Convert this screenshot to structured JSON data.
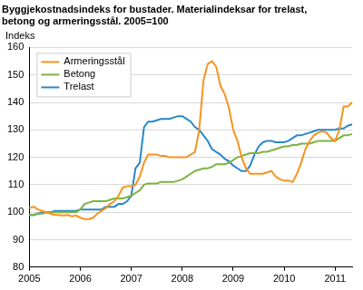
{
  "chart_data": {
    "type": "line",
    "title": "Byggjekostnadsindeks for bustader. Materialindeksar for trelast, betong og armeringsstål. 2005=100",
    "ylabel": "Indeks",
    "categories": [
      "2005",
      null,
      null,
      null,
      null,
      null,
      null,
      null,
      null,
      null,
      null,
      null,
      "2006",
      null,
      null,
      null,
      null,
      null,
      null,
      null,
      null,
      null,
      null,
      null,
      "2007",
      null,
      null,
      null,
      null,
      null,
      null,
      null,
      null,
      null,
      null,
      null,
      "2008",
      null,
      null,
      null,
      null,
      null,
      null,
      null,
      null,
      null,
      null,
      null,
      "2009",
      null,
      null,
      null,
      null,
      null,
      null,
      null,
      null,
      null,
      null,
      null,
      "2010",
      null,
      null,
      null,
      null,
      null,
      null,
      null,
      null,
      null,
      null,
      null,
      "2011",
      null,
      null,
      null,
      null
    ],
    "series": [
      {
        "name": "Armeringsstål",
        "color": "#f7931e",
        "values": [
          101.5,
          102,
          101,
          100.5,
          100,
          99.5,
          99,
          99,
          98.8,
          99,
          98.5,
          98.8,
          98,
          97.5,
          97.5,
          98,
          99.5,
          100.5,
          101.5,
          103,
          104,
          106,
          109,
          109.5,
          109.5,
          110,
          113,
          118,
          121,
          121,
          121,
          120.5,
          120.5,
          120,
          120,
          120,
          120,
          120,
          121,
          122,
          130,
          148,
          154,
          155,
          153,
          146,
          143,
          138,
          130,
          126,
          120,
          116,
          114,
          114,
          114,
          114,
          114.5,
          115,
          113,
          112,
          111.5,
          111.5,
          111,
          114,
          118,
          123,
          126,
          128,
          129,
          129.5,
          129,
          127,
          126,
          130,
          138.5,
          138.5,
          140
        ]
      },
      {
        "name": "Betong",
        "color": "#7cb342",
        "values": [
          99,
          99,
          99.5,
          99.5,
          100,
          100,
          100,
          100,
          100,
          100,
          100,
          100,
          101,
          103,
          103.5,
          104,
          104,
          104,
          104,
          104.5,
          105,
          105,
          105,
          105.5,
          106,
          107,
          108,
          110,
          110.5,
          110.5,
          110.5,
          111,
          111,
          111,
          111,
          111.5,
          112,
          113,
          114,
          115,
          115.5,
          116,
          116,
          116.5,
          117.5,
          117.5,
          117.5,
          118,
          119,
          120,
          120.5,
          121,
          121.5,
          121.5,
          121.5,
          122,
          122,
          122.5,
          123,
          123.5,
          124,
          124,
          124.5,
          124.5,
          125,
          125,
          125,
          125.5,
          126,
          126,
          126,
          126,
          126,
          127,
          128,
          128,
          128.5
        ]
      },
      {
        "name": "Trelast",
        "color": "#2a87c8",
        "values": [
          99,
          99,
          99.5,
          100,
          100,
          100,
          100.5,
          100.5,
          100.5,
          100.5,
          100.5,
          100.5,
          101,
          101,
          101,
          101,
          101,
          101,
          102,
          102,
          102,
          103,
          103,
          104,
          106,
          116,
          118,
          131,
          133,
          133,
          133.5,
          134,
          134,
          134,
          134.5,
          135,
          135,
          134,
          133,
          131,
          130,
          128,
          126,
          123,
          122,
          121,
          119.5,
          118.5,
          117,
          116,
          115,
          115,
          117,
          121,
          124,
          125.5,
          126,
          126,
          125.5,
          125.5,
          125.5,
          126,
          127,
          128,
          128,
          128.5,
          129,
          129.5,
          130,
          130,
          130,
          130,
          130,
          130.5,
          130.5,
          131.5,
          132
        ]
      }
    ],
    "ylim": [
      80,
      160
    ],
    "yticks": [
      80,
      90,
      100,
      110,
      120,
      130,
      140,
      150,
      160
    ],
    "grid": true,
    "legend": "upper left"
  }
}
